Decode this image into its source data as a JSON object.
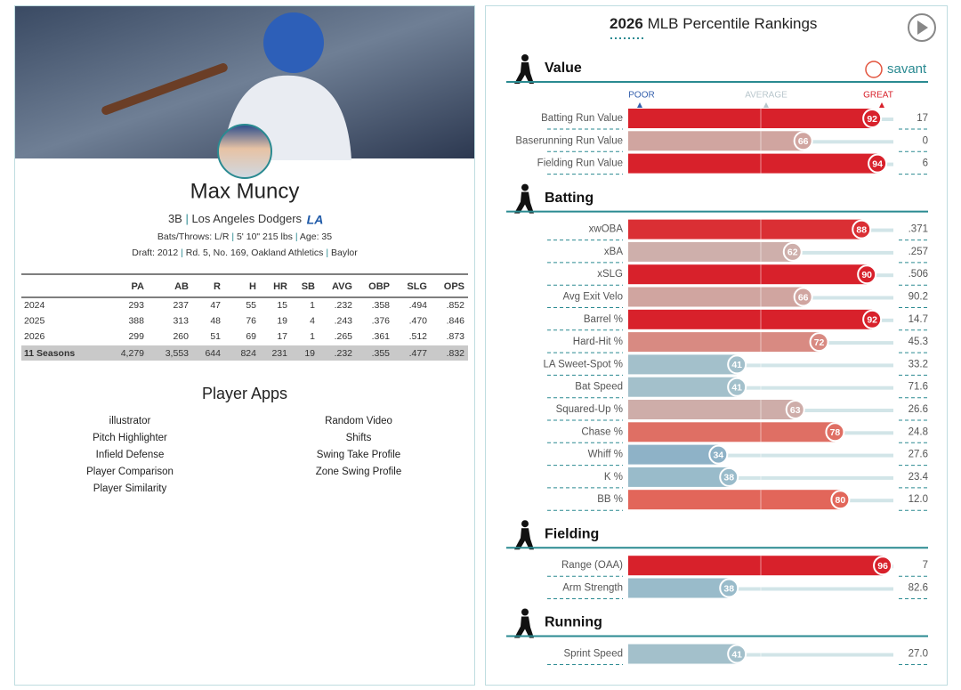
{
  "player": {
    "name": "Max Muncy",
    "position": "3B",
    "team": "Los Angeles Dodgers",
    "team_logo": "LA",
    "bats_throws": "Bats/Throws: L/R",
    "size": "5' 10\" 215 lbs",
    "age": "Age: 35",
    "draft": "Draft: 2012",
    "draft_pick": "Rd. 5, No. 169, Oakland Athletics",
    "school": "Baylor"
  },
  "stats_table": {
    "columns": [
      "PA",
      "AB",
      "R",
      "H",
      "HR",
      "SB",
      "AVG",
      "OBP",
      "SLG",
      "OPS"
    ],
    "rows": [
      {
        "label": "2024",
        "cells": [
          "293",
          "237",
          "47",
          "55",
          "15",
          "1",
          ".232",
          ".358",
          ".494",
          ".852"
        ]
      },
      {
        "label": "2025",
        "cells": [
          "388",
          "313",
          "48",
          "76",
          "19",
          "4",
          ".243",
          ".376",
          ".470",
          ".846"
        ]
      },
      {
        "label": "2026",
        "cells": [
          "299",
          "260",
          "51",
          "69",
          "17",
          "1",
          ".265",
          ".361",
          ".512",
          ".873"
        ]
      }
    ],
    "total": {
      "label": "11 Seasons",
      "cells": [
        "4,279",
        "3,553",
        "644",
        "824",
        "231",
        "19",
        ".232",
        ".355",
        ".477",
        ".832"
      ]
    }
  },
  "player_apps": {
    "title": "Player Apps",
    "left": [
      "illustrator",
      "Pitch Highlighter",
      "Infield Defense",
      "Player Comparison",
      "Player Similarity"
    ],
    "right": [
      "Random Video",
      "Shifts",
      "Swing Take Profile",
      "Zone Swing Profile"
    ]
  },
  "rankings": {
    "year": "2026",
    "title": "MLB Percentile Rankings",
    "brand": "savant",
    "scale": {
      "poor": "POOR",
      "average": "AVERAGE",
      "great": "GREAT"
    },
    "sections": [
      {
        "name": "Value",
        "metrics": [
          {
            "label": "Batting Run Value",
            "percentile": 92,
            "value": "17"
          },
          {
            "label": "Baserunning Run Value",
            "percentile": 66,
            "value": "0"
          },
          {
            "label": "Fielding Run Value",
            "percentile": 94,
            "value": "6"
          }
        ]
      },
      {
        "name": "Batting",
        "metrics": [
          {
            "label": "xwOBA",
            "percentile": 88,
            "value": ".371"
          },
          {
            "label": "xBA",
            "percentile": 62,
            "value": ".257"
          },
          {
            "label": "xSLG",
            "percentile": 90,
            "value": ".506"
          },
          {
            "label": "Avg Exit Velo",
            "percentile": 66,
            "value": "90.2"
          },
          {
            "label": "Barrel %",
            "percentile": 92,
            "value": "14.7"
          },
          {
            "label": "Hard-Hit %",
            "percentile": 72,
            "value": "45.3"
          },
          {
            "label": "LA Sweet-Spot %",
            "percentile": 41,
            "value": "33.2"
          },
          {
            "label": "Bat Speed",
            "percentile": 41,
            "value": "71.6"
          },
          {
            "label": "Squared-Up %",
            "percentile": 63,
            "value": "26.6"
          },
          {
            "label": "Chase %",
            "percentile": 78,
            "value": "24.8"
          },
          {
            "label": "Whiff %",
            "percentile": 34,
            "value": "27.6"
          },
          {
            "label": "K %",
            "percentile": 38,
            "value": "23.4"
          },
          {
            "label": "BB %",
            "percentile": 80,
            "value": "12.0"
          }
        ]
      },
      {
        "name": "Fielding",
        "metrics": [
          {
            "label": "Range (OAA)",
            "percentile": 96,
            "value": "7"
          },
          {
            "label": "Arm Strength",
            "percentile": 38,
            "value": "82.6"
          }
        ]
      },
      {
        "name": "Running",
        "metrics": [
          {
            "label": "Sprint Speed",
            "percentile": 41,
            "value": "27.0"
          }
        ]
      }
    ]
  }
}
